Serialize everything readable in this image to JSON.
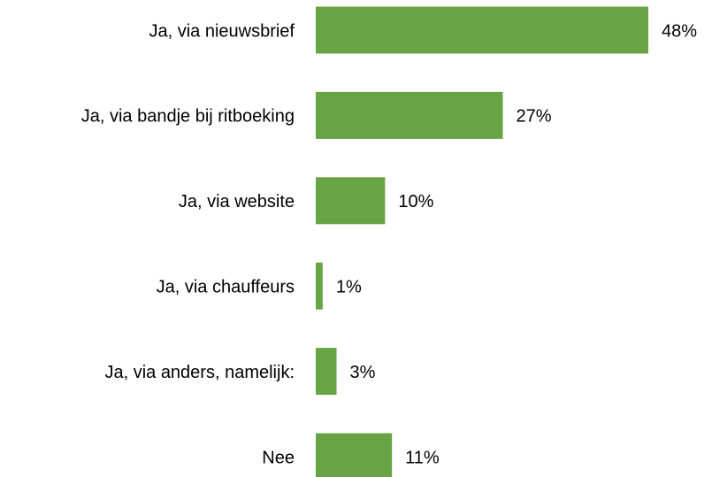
{
  "chart_data": {
    "type": "bar",
    "orientation": "horizontal",
    "categories": [
      "Ja, via nieuwsbrief",
      "Ja, via bandje bij ritboeking",
      "Ja, via website",
      "Ja, via chauffeurs",
      "Ja, via anders, namelijk:",
      "Nee"
    ],
    "values": [
      48,
      27,
      10,
      1,
      3,
      11
    ],
    "value_labels": [
      "48%",
      "27%",
      "10%",
      "1%",
      "3%",
      "11%"
    ],
    "color": "#67a443"
  }
}
